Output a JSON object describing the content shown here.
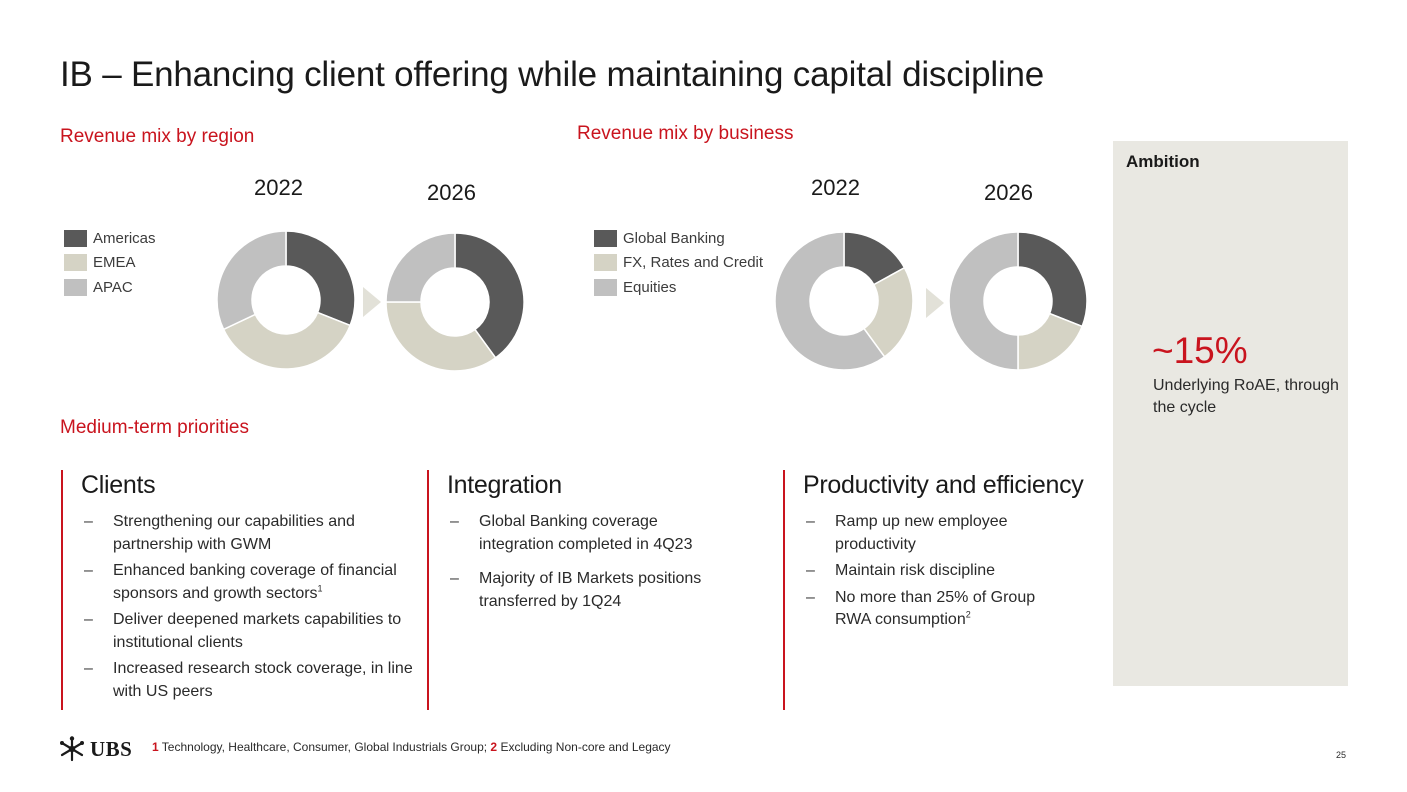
{
  "title": "IB – Enhancing client offering while maintaining capital discipline",
  "colors": {
    "accent": "#c9141e",
    "dark": "#595959",
    "beige": "#d5d3c5",
    "light": "#c0c0c0",
    "panel": "#e9e8e2"
  },
  "region": {
    "label": "Revenue mix by region",
    "legend": [
      {
        "name": "Americas",
        "color": "#595959"
      },
      {
        "name": "EMEA",
        "color": "#d5d3c5"
      },
      {
        "name": "APAC",
        "color": "#c0c0c0"
      }
    ]
  },
  "business": {
    "label": "Revenue mix by business",
    "legend": [
      {
        "name": "Global Banking",
        "color": "#595959"
      },
      {
        "name": "FX, Rates and Credit",
        "color": "#d5d3c5"
      },
      {
        "name": "Equities",
        "color": "#c0c0c0"
      }
    ]
  },
  "chart_data": [
    {
      "type": "pie",
      "title": "2022",
      "categories": [
        "Americas",
        "EMEA",
        "APAC"
      ],
      "values": [
        31,
        37,
        32
      ],
      "donut": true
    },
    {
      "type": "pie",
      "title": "2026",
      "categories": [
        "Americas",
        "EMEA",
        "APAC"
      ],
      "values": [
        40,
        35,
        25
      ],
      "donut": true
    },
    {
      "type": "pie",
      "title": "2022",
      "categories": [
        "Global Banking",
        "FX, Rates and Credit",
        "Equities"
      ],
      "values": [
        17,
        23,
        60
      ],
      "donut": true
    },
    {
      "type": "pie",
      "title": "2026",
      "categories": [
        "Global Banking",
        "FX, Rates and Credit",
        "Equities"
      ],
      "values": [
        31,
        19,
        50
      ],
      "donut": true
    }
  ],
  "ambition": {
    "title": "Ambition",
    "value": "~15%",
    "description": "Underlying RoAE, through the cycle"
  },
  "priorities": {
    "label": "Medium-term priorities",
    "columns": [
      {
        "heading": "Clients",
        "bullets": [
          {
            "text": "Strengthening our capabilities and partnership with GWM"
          },
          {
            "text": "Enhanced banking coverage of financial sponsors and growth sectors",
            "sup": "1"
          },
          {
            "text": "Deliver deepened markets capabilities to institutional clients"
          },
          {
            "text": "Increased research stock coverage, in line with US peers"
          }
        ]
      },
      {
        "heading": "Integration",
        "bullets": [
          {
            "text": "Global Banking coverage integration completed in 4Q23"
          },
          {
            "text": "Majority of IB Markets positions transferred by 1Q24"
          }
        ]
      },
      {
        "heading": "Productivity and efficiency",
        "bullets": [
          {
            "text": "Ramp up new employee productivity"
          },
          {
            "text": "Maintain risk discipline"
          },
          {
            "text": "No more than 25% of Group RWA consumption",
            "sup": "2"
          }
        ]
      }
    ]
  },
  "footer": {
    "logo": "UBS",
    "footnote_1_num": "1",
    "footnote_1_text": " Technology, Healthcare, Consumer, Global Industrials Group; ",
    "footnote_2_num": "2",
    "footnote_2_text": " Excluding Non-core and Legacy",
    "page_number": "25"
  }
}
